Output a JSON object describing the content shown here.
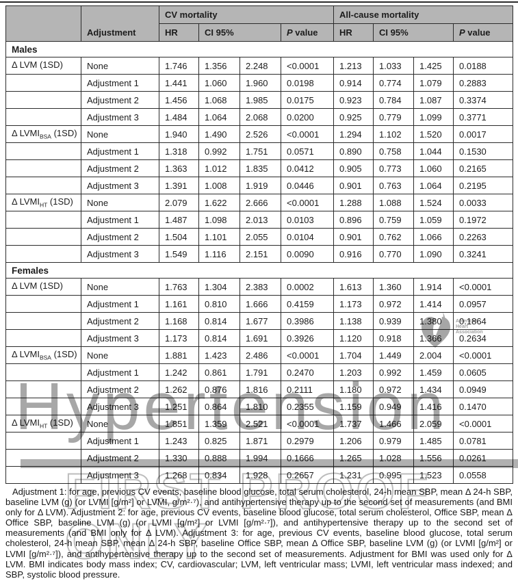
{
  "colors": {
    "header_bg": "#b5b5b5",
    "border": "#2a2a2a",
    "text": "#1c1c1c",
    "watermark_gray": "#a7a7a7"
  },
  "table": {
    "header": {
      "adjustment": "Adjustment",
      "cv_group": "CV mortality",
      "ac_group": "All-cause mortality",
      "hr": "HR",
      "ci": "CI 95%",
      "p_italic": "P",
      "p_rest": " value"
    },
    "sections": [
      {
        "label": "Males",
        "groups": [
          {
            "label_main": "Δ LVM",
            "label_sub": "",
            "label_suffix": " (1SD)",
            "rows": [
              {
                "adjustment": "None",
                "cv": [
                  "1.746",
                  "1.356",
                  "2.248",
                  "<0.0001"
                ],
                "ac": [
                  "1.213",
                  "1.033",
                  "1.425",
                  "0.0188"
                ]
              },
              {
                "adjustment": "Adjustment 1",
                "cv": [
                  "1.441",
                  "1.060",
                  "1.960",
                  "0.0198"
                ],
                "ac": [
                  "0.914",
                  "0.774",
                  "1.079",
                  "0.2883"
                ]
              },
              {
                "adjustment": "Adjustment 2",
                "cv": [
                  "1.456",
                  "1.068",
                  "1.985",
                  "0.0175"
                ],
                "ac": [
                  "0.923",
                  "0.784",
                  "1.087",
                  "0.3374"
                ]
              },
              {
                "adjustment": "Adjustment 3",
                "cv": [
                  "1.484",
                  "1.064",
                  "2.068",
                  "0.0200"
                ],
                "ac": [
                  "0.925",
                  "0.779",
                  "1.099",
                  "0.3771"
                ]
              }
            ]
          },
          {
            "label_main": "Δ LVMI",
            "label_sub": "BSA",
            "label_suffix": " (1SD)",
            "rows": [
              {
                "adjustment": "None",
                "cv": [
                  "1.940",
                  "1.490",
                  "2.526",
                  "<0.0001"
                ],
                "ac": [
                  "1.294",
                  "1.102",
                  "1.520",
                  "0.0017"
                ]
              },
              {
                "adjustment": "Adjustment 1",
                "cv": [
                  "1.318",
                  "0.992",
                  "1.751",
                  "0.0571"
                ],
                "ac": [
                  "0.890",
                  "0.758",
                  "1.044",
                  "0.1530"
                ]
              },
              {
                "adjustment": "Adjustment 2",
                "cv": [
                  "1.363",
                  "1.012",
                  "1.835",
                  "0.0412"
                ],
                "ac": [
                  "0.905",
                  "0.773",
                  "1.060",
                  "0.2165"
                ]
              },
              {
                "adjustment": "Adjustment 3",
                "cv": [
                  "1.391",
                  "1.008",
                  "1.919",
                  "0.0446"
                ],
                "ac": [
                  "0.901",
                  "0.763",
                  "1.064",
                  "0.2195"
                ]
              }
            ]
          },
          {
            "label_main": "Δ LVMI",
            "label_sub": "HT",
            "label_suffix": " (1SD)",
            "rows": [
              {
                "adjustment": "None",
                "cv": [
                  "2.079",
                  "1.622",
                  "2.666",
                  "<0.0001"
                ],
                "ac": [
                  "1.288",
                  "1.088",
                  "1.524",
                  "0.0033"
                ]
              },
              {
                "adjustment": "Adjustment 1",
                "cv": [
                  "1.487",
                  "1.098",
                  "2.013",
                  "0.0103"
                ],
                "ac": [
                  "0.896",
                  "0.759",
                  "1.059",
                  "0.1972"
                ]
              },
              {
                "adjustment": "Adjustment 2",
                "cv": [
                  "1.504",
                  "1.101",
                  "2.055",
                  "0.0104"
                ],
                "ac": [
                  "0.901",
                  "0.762",
                  "1.066",
                  "0.2263"
                ]
              },
              {
                "adjustment": "Adjustment 3",
                "cv": [
                  "1.549",
                  "1.116",
                  "2.151",
                  "0.0090"
                ],
                "ac": [
                  "0.916",
                  "0.770",
                  "1.090",
                  "0.3241"
                ]
              }
            ]
          }
        ]
      },
      {
        "label": "Females",
        "groups": [
          {
            "label_main": "Δ LVM",
            "label_sub": "",
            "label_suffix": " (1SD)",
            "rows": [
              {
                "adjustment": "None",
                "cv": [
                  "1.763",
                  "1.304",
                  "2.383",
                  "0.0002"
                ],
                "ac": [
                  "1.613",
                  "1.360",
                  "1.914",
                  "<0.0001"
                ]
              },
              {
                "adjustment": "Adjustment 1",
                "cv": [
                  "1.161",
                  "0.810",
                  "1.666",
                  "0.4159"
                ],
                "ac": [
                  "1.173",
                  "0.972",
                  "1.414",
                  "0.0957"
                ]
              },
              {
                "adjustment": "Adjustment 2",
                "cv": [
                  "1.168",
                  "0.814",
                  "1.677",
                  "0.3986"
                ],
                "ac": [
                  "1.138",
                  "0.939",
                  "1.380",
                  "0.1864"
                ]
              },
              {
                "adjustment": "Adjustment 3",
                "cv": [
                  "1.173",
                  "0.814",
                  "1.691",
                  "0.3926"
                ],
                "ac": [
                  "1.120",
                  "0.918",
                  "1.366",
                  "0.2634"
                ]
              }
            ]
          },
          {
            "label_main": "Δ LVMI",
            "label_sub": "BSA",
            "label_suffix": " (1SD)",
            "rows": [
              {
                "adjustment": "None",
                "cv": [
                  "1.881",
                  "1.423",
                  "2.486",
                  "<0.0001"
                ],
                "ac": [
                  "1.704",
                  "1.449",
                  "2.004",
                  "<0.0001"
                ]
              },
              {
                "adjustment": "Adjustment 1",
                "cv": [
                  "1.242",
                  "0.861",
                  "1.791",
                  "0.2470"
                ],
                "ac": [
                  "1.203",
                  "0.992",
                  "1.459",
                  "0.0605"
                ]
              },
              {
                "adjustment": "Adjustment 2",
                "cv": [
                  "1.262",
                  "0.876",
                  "1.816",
                  "0.2111"
                ],
                "ac": [
                  "1.180",
                  "0.972",
                  "1.434",
                  "0.0949"
                ]
              },
              {
                "adjustment": "Adjustment 3",
                "cv": [
                  "1.251",
                  "0.864",
                  "1.810",
                  "0.2355"
                ],
                "ac": [
                  "1.159",
                  "0.949",
                  "1.416",
                  "0.1470"
                ]
              }
            ]
          },
          {
            "label_main": "Δ LVMI",
            "label_sub": "HT",
            "label_suffix": " (1SD)",
            "rows": [
              {
                "adjustment": "None",
                "cv": [
                  "1.851",
                  "1.359",
                  "2.521",
                  "<0.0001"
                ],
                "ac": [
                  "1.737",
                  "1.466",
                  "2.059",
                  "<0.0001"
                ]
              },
              {
                "adjustment": "Adjustment 1",
                "cv": [
                  "1.243",
                  "0.825",
                  "1.871",
                  "0.2979"
                ],
                "ac": [
                  "1.206",
                  "0.979",
                  "1.485",
                  "0.0781"
                ]
              },
              {
                "adjustment": "Adjustment 2",
                "cv": [
                  "1.330",
                  "0.888",
                  "1.994",
                  "0.1666"
                ],
                "ac": [
                  "1.265",
                  "1.028",
                  "1.556",
                  "0.0261"
                ]
              },
              {
                "adjustment": "Adjustment 3",
                "cv": [
                  "1.268",
                  "0.834",
                  "1.928",
                  "0.2657"
                ],
                "ac": [
                  "1.231",
                  "0.995",
                  "1.523",
                  "0.0558"
                ]
              }
            ]
          }
        ]
      }
    ]
  },
  "watermarks": {
    "journal": "Hypertension",
    "proof": "FIRST PROOF ONLY",
    "aha_lines": [
      "American",
      "Heart",
      "Association"
    ]
  },
  "footnote": "Adjustment 1: for age, previous CV events, baseline blood glucose, total serum cholesterol, 24-h mean SBP, mean Δ 24-h SBP, baseline LVM (g) (or LVMI [g/m²] or LVMI, g/m²·⁷), and antihypertensive therapy up to the second set of measurements (and BMI only for Δ LVM). Adjustment 2: for age, previous CV events, baseline blood glucose, total serum cholesterol, Office SBP, mean Δ Office SBP, baseline LVM (g) (or LVMI [g/m²] or LVMI [g/m²·⁷]), and antihypertensive therapy up to the second set of measurements (and BMI only for Δ LVM). Adjustment 3: for age, previous CV events, baseline blood glucose, total serum cholesterol, 24-h mean SBP, mean Δ 24-h SBP, baseline Office SBP, mean Δ Office SBP, baseline LVM (g) (or LVMI [g/m²] or LVMI [g/m²·⁷]), and antihypertensive therapy up to the second set of measurements. Adjustment for BMI was used only for Δ LVM. BMI indicates body mass index; CV, cardiovascular; LVM, left ventricular mass; LVMI, left ventricular mass indexed; and SBP, systolic blood pressure."
}
